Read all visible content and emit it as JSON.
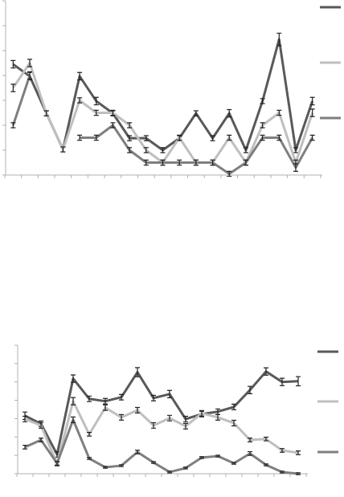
{
  "chart_data": [
    {
      "type": "line",
      "categories": [
        null,
        null,
        null,
        null,
        null,
        null,
        null,
        null,
        null,
        null,
        null,
        null,
        null,
        null,
        null,
        null,
        null,
        null,
        null
      ],
      "ylim": [
        0,
        7
      ],
      "yticks": [
        0,
        1,
        2,
        3,
        4,
        5,
        6,
        7
      ],
      "series": [
        {
          "color": "#595959",
          "values": [
            4.45,
            3.97,
            2.48,
            1.03,
            3.97,
            2.97,
            2.48,
            1.48,
            1.48,
            1.0,
            1.48,
            2.48,
            1.48,
            2.48,
            1.0,
            2.97,
            5.45,
            1.0,
            2.97
          ],
          "errors": [
            0.15,
            0.15,
            0.1,
            0.1,
            0.15,
            0.15,
            0.1,
            0.1,
            0.1,
            0.1,
            0.1,
            0.1,
            0.1,
            0.15,
            0.1,
            0.1,
            0.25,
            0.1,
            0.15
          ]
        },
        {
          "color": "#bfbfbf",
          "values": [
            3.5,
            4.5,
            2.48,
            1.03,
            3.0,
            2.5,
            2.5,
            2.0,
            1.0,
            0.5,
            1.5,
            0.5,
            0.5,
            1.5,
            0.5,
            2.0,
            2.5,
            0.5,
            2.5
          ],
          "errors": [
            0.15,
            0.15,
            0.1,
            0.1,
            0.1,
            0.1,
            0.1,
            0.1,
            0.1,
            0.1,
            0.1,
            0.1,
            0.1,
            0.1,
            0.1,
            0.1,
            0.1,
            0.1,
            0.15
          ]
        },
        {
          "color": "#7f7f7f",
          "values": [
            2.0,
            4.0,
            null,
            null,
            1.5,
            1.5,
            2.0,
            1.0,
            0.5,
            0.5,
            0.5,
            0.5,
            0.5,
            0.05,
            0.5,
            1.5,
            1.5,
            0.3,
            1.5
          ],
          "errors": [
            0.1,
            0.15,
            null,
            null,
            0.1,
            0.1,
            0.1,
            0.1,
            0.1,
            0.1,
            0.1,
            0.1,
            0.1,
            0.1,
            0.1,
            0.1,
            0.1,
            0.15,
            0.1
          ]
        }
      ]
    },
    {
      "type": "line",
      "categories": [
        null,
        null,
        null,
        null,
        null,
        null,
        null,
        null,
        null,
        null,
        null,
        null,
        null,
        null,
        null,
        null,
        null,
        null
      ],
      "ylim": [
        0,
        7
      ],
      "yticks": [
        0,
        1,
        2,
        3,
        4,
        5,
        6,
        7
      ],
      "series": [
        {
          "color": "#595959",
          "values": [
            3.16,
            2.72,
            1.05,
            5.18,
            4.08,
            3.95,
            4.17,
            5.53,
            4.12,
            4.34,
            2.98,
            3.25,
            3.38,
            3.64,
            4.56,
            5.57,
            5.0,
            5.04
          ],
          "errors": [
            0.2,
            0.15,
            0.15,
            0.2,
            0.15,
            0.15,
            0.15,
            0.25,
            0.15,
            0.2,
            0.15,
            0.15,
            0.15,
            0.15,
            0.2,
            0.2,
            0.2,
            0.25
          ]
        },
        {
          "color": "#bfbfbf",
          "values": [
            2.98,
            2.63,
            0.53,
            3.95,
            2.15,
            3.6,
            3.07,
            3.46,
            2.63,
            3.03,
            2.59,
            3.29,
            3.07,
            2.76,
            1.84,
            1.89,
            1.27,
            1.14
          ],
          "errors": [
            0.15,
            0.15,
            0.1,
            0.2,
            0.1,
            0.15,
            0.15,
            0.15,
            0.15,
            0.15,
            0.15,
            0.15,
            0.15,
            0.15,
            0.1,
            0.1,
            0.1,
            0.1
          ]
        },
        {
          "color": "#7f7f7f",
          "values": [
            1.45,
            1.84,
            0.57,
            2.94,
            0.83,
            0.35,
            0.44,
            1.18,
            0.61,
            0.09,
            0.31,
            0.88,
            0.96,
            0.57,
            1.1,
            0.48,
            0.09,
            0.0
          ],
          "errors": [
            0.1,
            0.1,
            0.1,
            0.15,
            0.05,
            0.05,
            0.05,
            0.1,
            0.05,
            0.05,
            0.05,
            0.05,
            0.05,
            0.05,
            0.1,
            0.05,
            0.05,
            0.05
          ]
        }
      ]
    }
  ]
}
